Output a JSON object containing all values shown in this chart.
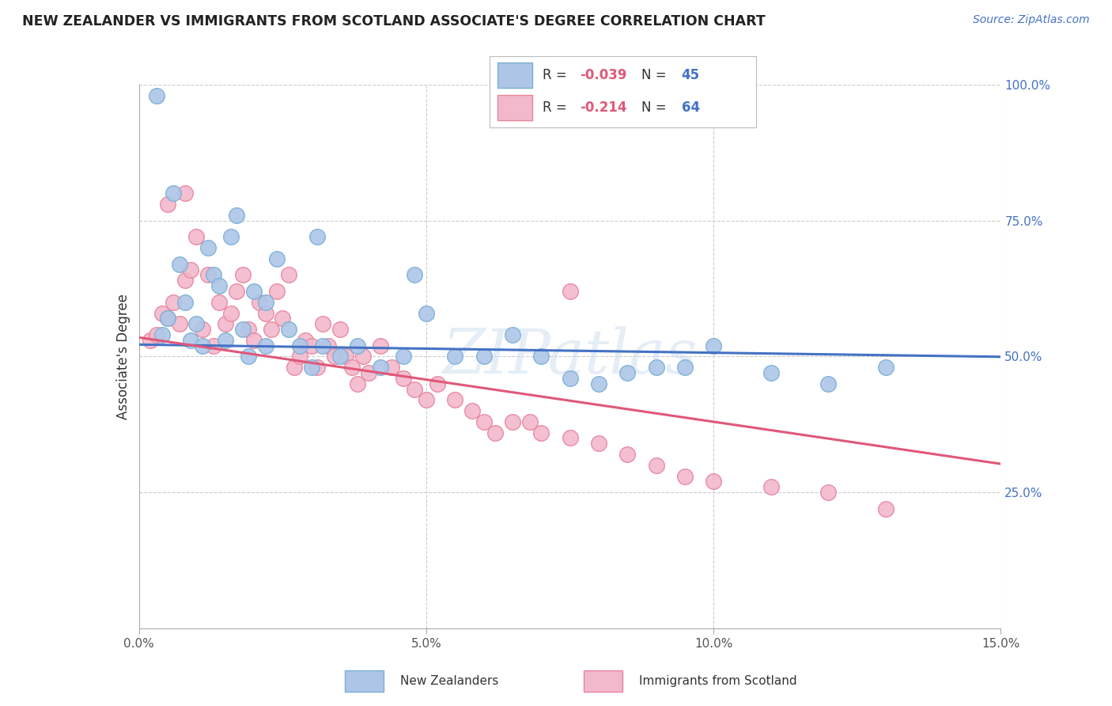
{
  "title": "NEW ZEALANDER VS IMMIGRANTS FROM SCOTLAND ASSOCIATE'S DEGREE CORRELATION CHART",
  "source_text": "Source: ZipAtlas.com",
  "ylabel": "Associate's Degree",
  "xlim": [
    0.0,
    0.15
  ],
  "ylim": [
    0.0,
    1.0
  ],
  "xticks": [
    0.0,
    0.05,
    0.1,
    0.15
  ],
  "xtick_labels": [
    "0.0%",
    "5.0%",
    "10.0%",
    "15.0%"
  ],
  "yticks": [
    0.0,
    0.25,
    0.5,
    0.75,
    1.0
  ],
  "ytick_labels": [
    "",
    "25.0%",
    "50.0%",
    "75.0%",
    "100.0%"
  ],
  "blue_color": "#adc6e8",
  "pink_color": "#f2b8cc",
  "blue_edge": "#7aafd4",
  "pink_edge": "#e8849c",
  "line_blue": "#4472c4",
  "line_pink": "#e05878",
  "R_blue": -0.039,
  "N_blue": 45,
  "R_pink": -0.214,
  "N_pink": 64,
  "legend_label_blue": "New Zealanders",
  "legend_label_pink": "Immigrants from Scotland",
  "watermark": "ZIPatlas",
  "blue_x": [
    0.003,
    0.004,
    0.005,
    0.006,
    0.007,
    0.008,
    0.009,
    0.01,
    0.011,
    0.012,
    0.013,
    0.014,
    0.015,
    0.016,
    0.017,
    0.018,
    0.019,
    0.02,
    0.022,
    0.024,
    0.026,
    0.028,
    0.03,
    0.032,
    0.035,
    0.038,
    0.042,
    0.046,
    0.05,
    0.055,
    0.06,
    0.065,
    0.07,
    0.075,
    0.08,
    0.09,
    0.1,
    0.11,
    0.12,
    0.13,
    0.022,
    0.031,
    0.048,
    0.085,
    0.095
  ],
  "blue_y": [
    0.98,
    0.54,
    0.57,
    0.8,
    0.67,
    0.6,
    0.53,
    0.56,
    0.52,
    0.7,
    0.65,
    0.63,
    0.53,
    0.72,
    0.76,
    0.55,
    0.5,
    0.62,
    0.6,
    0.68,
    0.55,
    0.52,
    0.48,
    0.52,
    0.5,
    0.52,
    0.48,
    0.5,
    0.58,
    0.5,
    0.5,
    0.54,
    0.5,
    0.46,
    0.45,
    0.48,
    0.52,
    0.47,
    0.45,
    0.48,
    0.52,
    0.72,
    0.65,
    0.47,
    0.48
  ],
  "pink_x": [
    0.002,
    0.003,
    0.004,
    0.005,
    0.006,
    0.007,
    0.008,
    0.009,
    0.01,
    0.011,
    0.012,
    0.013,
    0.014,
    0.015,
    0.016,
    0.017,
    0.018,
    0.019,
    0.02,
    0.021,
    0.022,
    0.023,
    0.024,
    0.025,
    0.026,
    0.027,
    0.028,
    0.029,
    0.03,
    0.031,
    0.032,
    0.033,
    0.034,
    0.035,
    0.036,
    0.037,
    0.038,
    0.039,
    0.04,
    0.042,
    0.044,
    0.046,
    0.048,
    0.05,
    0.052,
    0.055,
    0.058,
    0.06,
    0.062,
    0.065,
    0.068,
    0.07,
    0.075,
    0.08,
    0.085,
    0.09,
    0.095,
    0.1,
    0.11,
    0.12,
    0.13,
    0.005,
    0.008,
    0.075
  ],
  "pink_y": [
    0.53,
    0.54,
    0.58,
    0.57,
    0.6,
    0.56,
    0.64,
    0.66,
    0.72,
    0.55,
    0.65,
    0.52,
    0.6,
    0.56,
    0.58,
    0.62,
    0.65,
    0.55,
    0.53,
    0.6,
    0.58,
    0.55,
    0.62,
    0.57,
    0.65,
    0.48,
    0.5,
    0.53,
    0.52,
    0.48,
    0.56,
    0.52,
    0.5,
    0.55,
    0.5,
    0.48,
    0.45,
    0.5,
    0.47,
    0.52,
    0.48,
    0.46,
    0.44,
    0.42,
    0.45,
    0.42,
    0.4,
    0.38,
    0.36,
    0.38,
    0.38,
    0.36,
    0.35,
    0.34,
    0.32,
    0.3,
    0.28,
    0.27,
    0.26,
    0.25,
    0.22,
    0.78,
    0.8,
    0.62
  ],
  "background_color": "#ffffff",
  "grid_color": "#cccccc",
  "blue_intercept": 0.522,
  "blue_slope": -0.15,
  "pink_intercept": 0.535,
  "pink_slope": -1.55
}
